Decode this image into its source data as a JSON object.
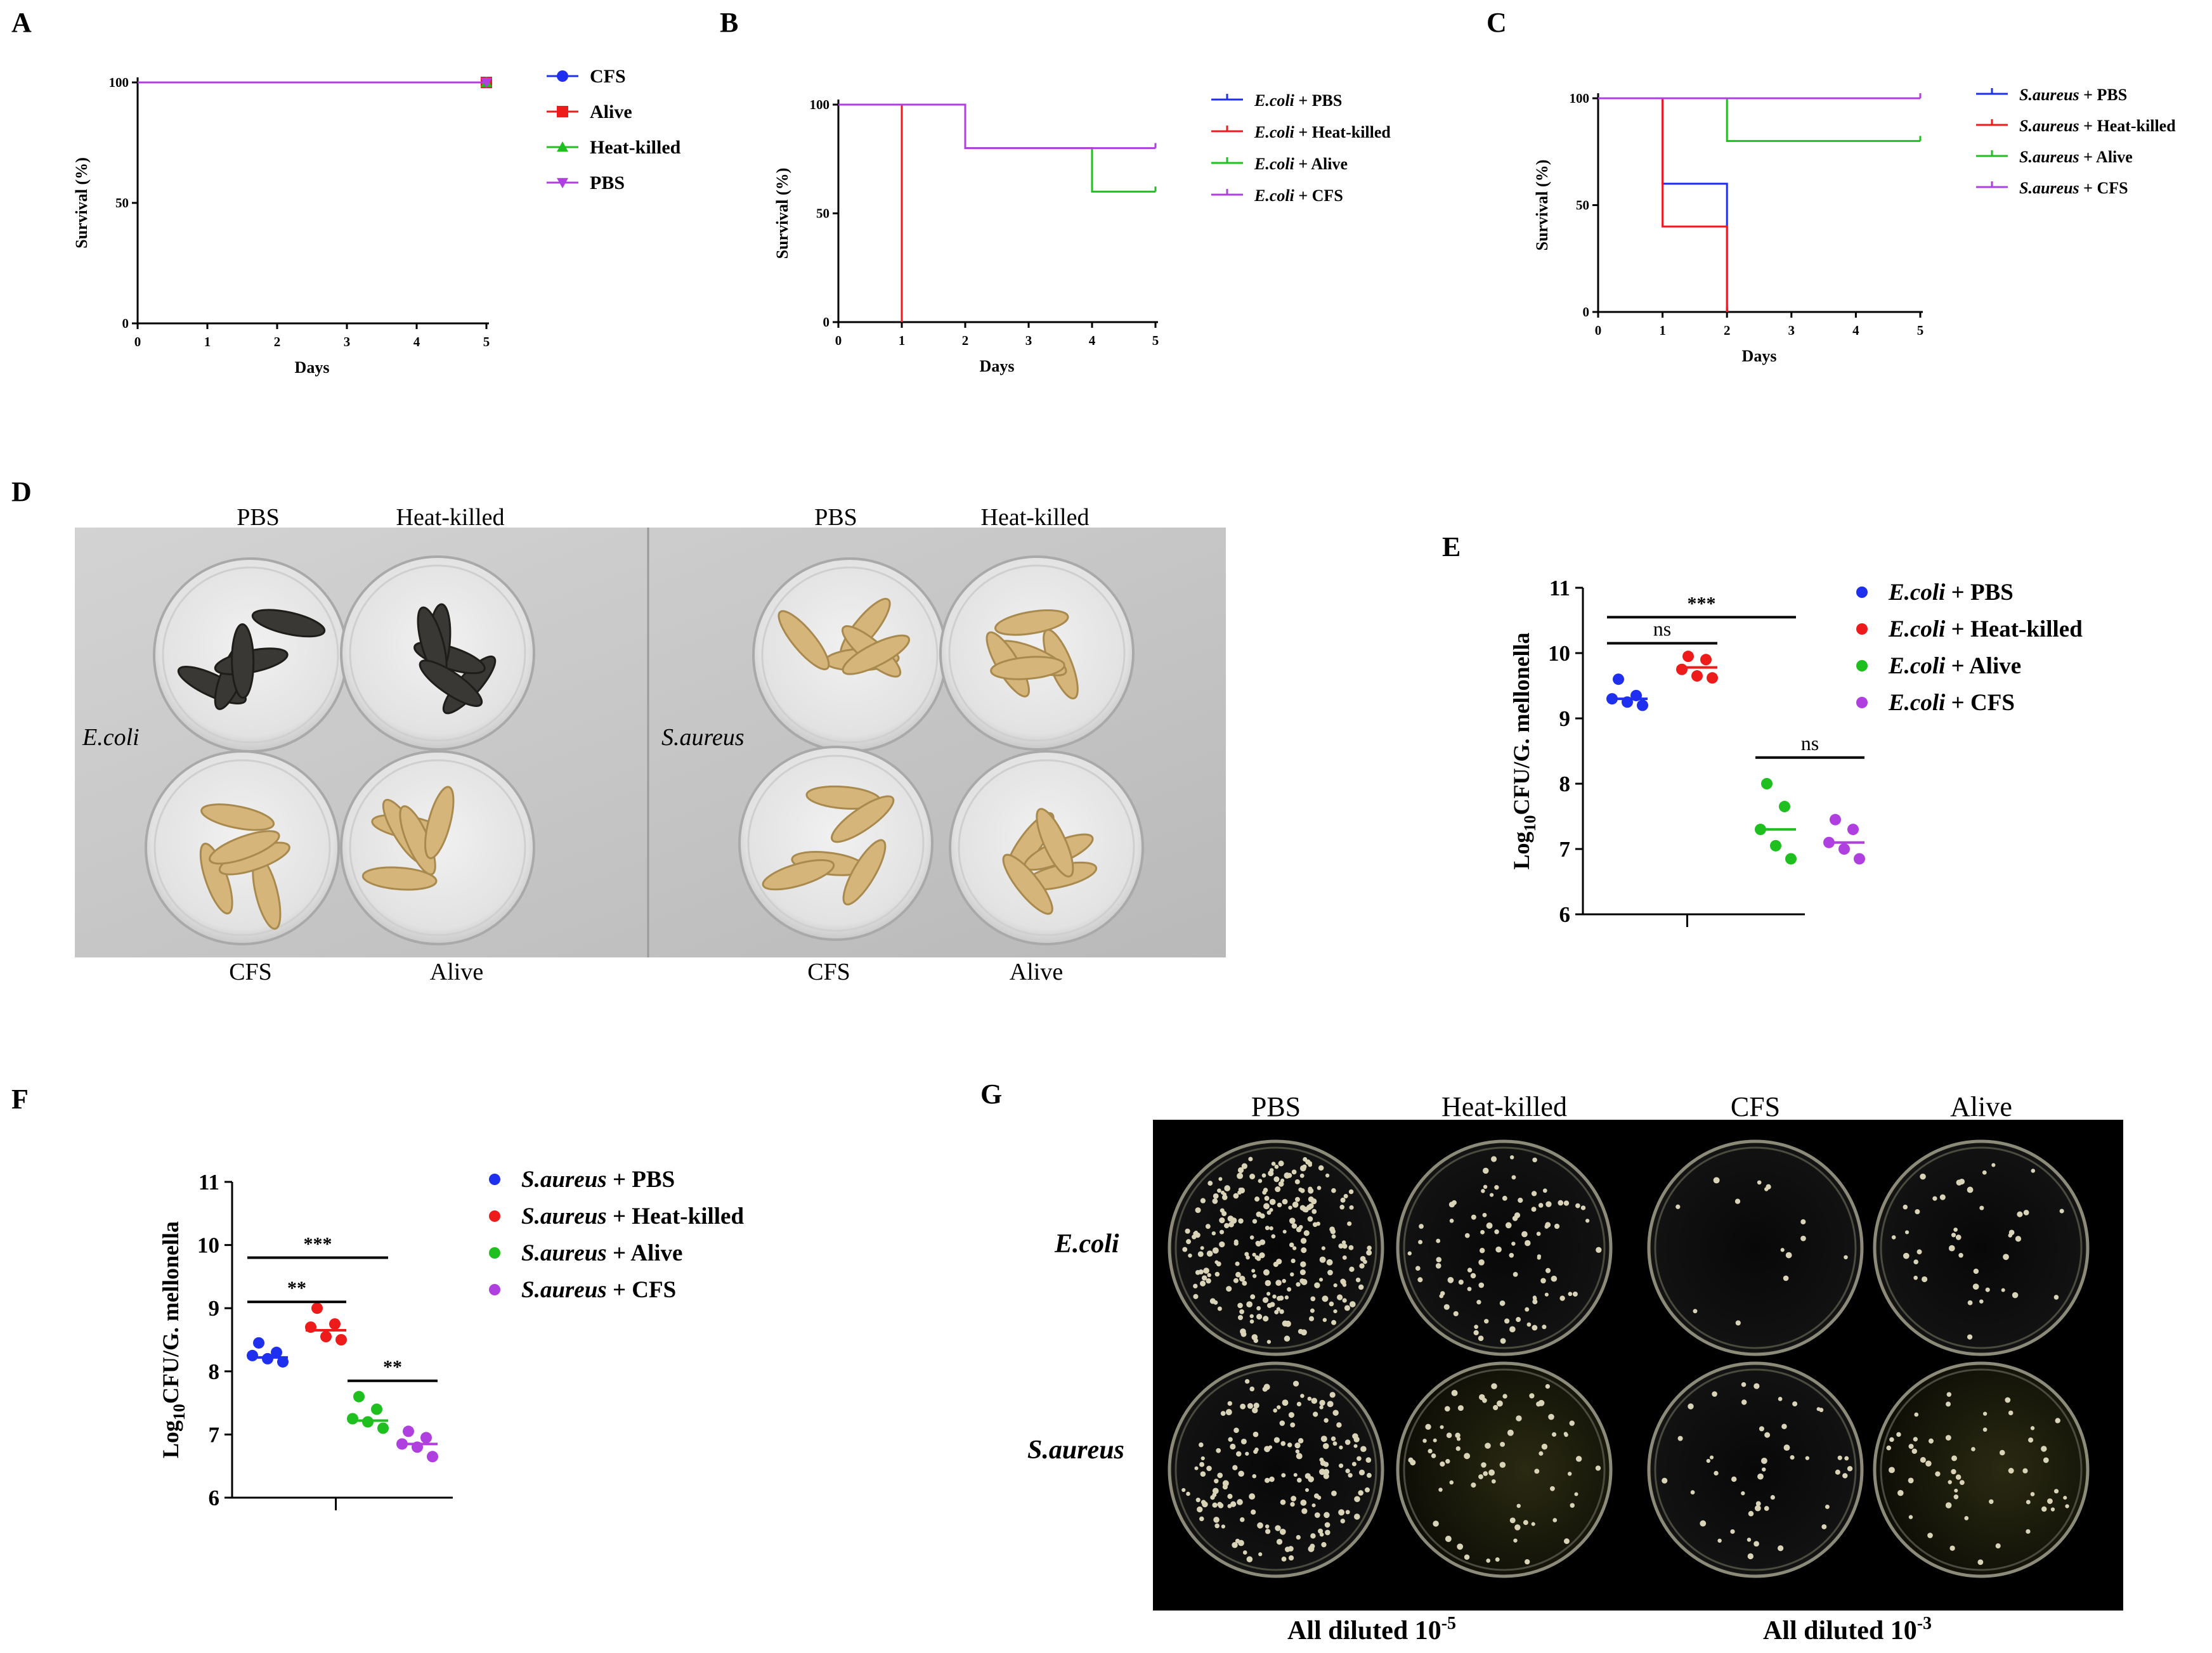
{
  "panels": [
    "A",
    "B",
    "C",
    "D",
    "E",
    "F",
    "G"
  ],
  "colors": {
    "blue": "#1f2ff0",
    "red": "#ee1b1b",
    "green": "#1fbf1f",
    "purple": "#b03fe0"
  },
  "chart_data": [
    {
      "panel": "A",
      "type": "line",
      "title": "",
      "xlabel": "Days",
      "ylabel": "Survival (%)",
      "xlim": [
        0,
        5
      ],
      "ylim": [
        0,
        100
      ],
      "x_ticks": [
        "0",
        "1",
        "2",
        "3",
        "4",
        "5"
      ],
      "y_ticks": [
        "0",
        "50",
        "100"
      ],
      "step": true,
      "legend_position": "right",
      "series": [
        {
          "name": "CFS",
          "color": "#1f2ff0",
          "marker": "circle",
          "x": [
            0,
            5
          ],
          "y": [
            100,
            100
          ]
        },
        {
          "name": "Alive",
          "color": "#ee1b1b",
          "marker": "square",
          "x": [
            0,
            5
          ],
          "y": [
            100,
            100
          ]
        },
        {
          "name": "Heat-killed",
          "color": "#1fbf1f",
          "marker": "triangle-up",
          "x": [
            0,
            5
          ],
          "y": [
            100,
            100
          ]
        },
        {
          "name": "PBS",
          "color": "#b03fe0",
          "marker": "triangle-down",
          "x": [
            0,
            5
          ],
          "y": [
            100,
            100
          ]
        }
      ]
    },
    {
      "panel": "B",
      "type": "line",
      "title": "",
      "xlabel": "Days",
      "ylabel": "Survival (%)",
      "xlim": [
        0,
        5
      ],
      "ylim": [
        0,
        100
      ],
      "x_ticks": [
        "0",
        "1",
        "2",
        "3",
        "4",
        "5"
      ],
      "y_ticks": [
        "0",
        "50",
        "100"
      ],
      "step": true,
      "legend_position": "right",
      "series": [
        {
          "name_italic": "E.coli",
          "name_rest": " + PBS",
          "color": "#1f2ff0",
          "x": [
            0,
            1,
            1
          ],
          "y": [
            100,
            100,
            0
          ]
        },
        {
          "name_italic": "E.coli",
          "name_rest": " + Heat-killed",
          "color": "#ee1b1b",
          "x": [
            0,
            1,
            1
          ],
          "y": [
            100,
            100,
            0
          ]
        },
        {
          "name_italic": "E.coli",
          "name_rest": " + Alive",
          "color": "#1fbf1f",
          "x": [
            0,
            2,
            2,
            4,
            4,
            5
          ],
          "y": [
            100,
            100,
            80,
            80,
            60,
            60
          ]
        },
        {
          "name_italic": "E.coli",
          "name_rest": " + CFS",
          "color": "#b03fe0",
          "x": [
            0,
            2,
            2,
            5
          ],
          "y": [
            100,
            100,
            80,
            80
          ]
        }
      ]
    },
    {
      "panel": "C",
      "type": "line",
      "title": "",
      "xlabel": "Days",
      "ylabel": "Survival (%)",
      "xlim": [
        0,
        5
      ],
      "ylim": [
        0,
        100
      ],
      "x_ticks": [
        "0",
        "1",
        "2",
        "3",
        "4",
        "5"
      ],
      "y_ticks": [
        "0",
        "50",
        "100"
      ],
      "step": true,
      "legend_position": "right",
      "series": [
        {
          "name_italic": "S.aureus",
          "name_rest": " + PBS",
          "color": "#1f2ff0",
          "x": [
            0,
            1,
            1,
            2,
            2
          ],
          "y": [
            100,
            100,
            60,
            60,
            0
          ]
        },
        {
          "name_italic": "S.aureus",
          "name_rest": " + Heat-killed",
          "color": "#ee1b1b",
          "x": [
            0,
            1,
            1,
            2,
            2
          ],
          "y": [
            100,
            100,
            40,
            40,
            0
          ]
        },
        {
          "name_italic": "S.aureus",
          "name_rest": " + Alive",
          "color": "#1fbf1f",
          "x": [
            0,
            2,
            2,
            5
          ],
          "y": [
            100,
            100,
            80,
            80
          ]
        },
        {
          "name_italic": "S.aureus",
          "name_rest": " + CFS",
          "color": "#b03fe0",
          "x": [
            0,
            5
          ],
          "y": [
            100,
            100
          ]
        }
      ]
    },
    {
      "panel": "E",
      "type": "scatter",
      "title": "",
      "xlabel": "",
      "ylabel_prefix": "Log",
      "ylabel_sub": "10",
      "ylabel_rest": "CFU/G. mellonella",
      "ylim": [
        6,
        11
      ],
      "y_ticks": [
        "6",
        "7",
        "8",
        "9",
        "10",
        "11"
      ],
      "legend_position": "right",
      "brackets": [
        {
          "from": 0,
          "to": 1,
          "label": "ns",
          "y": 10.15
        },
        {
          "from": 0,
          "to": 2,
          "label": "***",
          "y": 10.55
        },
        {
          "from": 2,
          "to": 3,
          "label": "ns",
          "y": 8.4
        }
      ],
      "series": [
        {
          "name_italic": "E.coli",
          "name_rest": " + PBS",
          "color": "#1f2ff0",
          "values": [
            9.6,
            9.35,
            9.3,
            9.25,
            9.2
          ],
          "median": 9.3
        },
        {
          "name_italic": "E.coli",
          "name_rest": " + Heat-killed",
          "color": "#ee1b1b",
          "values": [
            9.95,
            9.9,
            9.75,
            9.65,
            9.62
          ],
          "median": 9.78
        },
        {
          "name_italic": "E.coli",
          "name_rest": " + Alive",
          "color": "#1fbf1f",
          "values": [
            8.0,
            7.65,
            7.3,
            7.05,
            6.85
          ],
          "median": 7.3
        },
        {
          "name_italic": "E.coli",
          "name_rest": " + CFS",
          "color": "#b03fe0",
          "values": [
            7.45,
            7.3,
            7.1,
            7.0,
            6.85
          ],
          "median": 7.1
        }
      ]
    },
    {
      "panel": "F",
      "type": "scatter",
      "title": "",
      "xlabel": "",
      "ylabel_prefix": "Log",
      "ylabel_sub": "10",
      "ylabel_rest": "CFU/G. mellonella",
      "ylim": [
        6,
        11
      ],
      "y_ticks": [
        "6",
        "7",
        "8",
        "9",
        "10",
        "11"
      ],
      "legend_position": "right",
      "brackets": [
        {
          "from": 0,
          "to": 1,
          "label": "**",
          "y": 9.1
        },
        {
          "from": 0,
          "to": 2,
          "label": "***",
          "y": 9.8
        },
        {
          "from": 2,
          "to": 3,
          "label": "**",
          "y": 7.85
        }
      ],
      "series": [
        {
          "name_italic": "S.aureus",
          "name_rest": " + PBS",
          "color": "#1f2ff0",
          "values": [
            8.45,
            8.3,
            8.25,
            8.2,
            8.15
          ],
          "median": 8.22
        },
        {
          "name_italic": "S.aureus",
          "name_rest": " + Heat-killed",
          "color": "#ee1b1b",
          "values": [
            9.0,
            8.75,
            8.7,
            8.55,
            8.5
          ],
          "median": 8.65
        },
        {
          "name_italic": "S.aureus",
          "name_rest": " + Alive",
          "color": "#1fbf1f",
          "values": [
            7.6,
            7.4,
            7.25,
            7.2,
            7.1
          ],
          "median": 7.22
        },
        {
          "name_italic": "S.aureus",
          "name_rest": " + CFS",
          "color": "#b03fe0",
          "values": [
            7.05,
            6.95,
            6.85,
            6.8,
            6.65
          ],
          "median": 6.85
        }
      ]
    }
  ],
  "photo_d": {
    "left": {
      "row_label": "E.coli",
      "top_labels": [
        "PBS",
        "Heat-killed"
      ],
      "bottom_labels": [
        "CFS",
        "Alive"
      ]
    },
    "right": {
      "row_label": "S.aureus",
      "top_labels": [
        "PBS",
        "Heat-killed"
      ],
      "bottom_labels": [
        "CFS",
        "Alive"
      ]
    }
  },
  "photo_g": {
    "column_labels": [
      "PBS",
      "Heat-killed",
      "CFS",
      "Alive"
    ],
    "row_labels": [
      "E.coli",
      "S.aureus"
    ],
    "dilution_left": "All diluted 10",
    "dilution_left_exp": "-5",
    "dilution_right": "All diluted 10",
    "dilution_right_exp": "-3"
  }
}
